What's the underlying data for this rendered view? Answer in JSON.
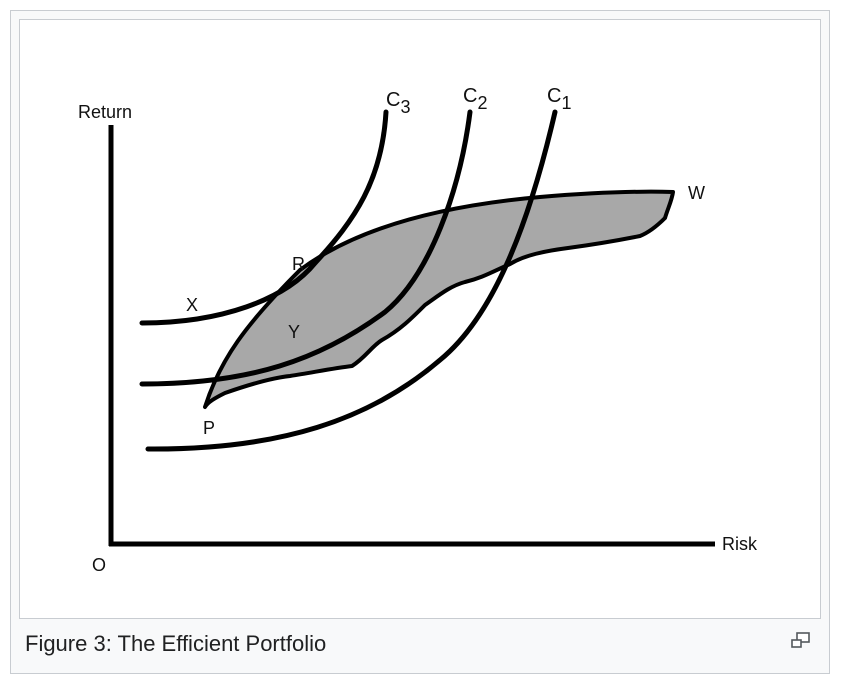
{
  "figure": {
    "caption": "Figure 3: The Efficient Portfolio",
    "magnify_icon": "magnify-clip-icon"
  },
  "diagram": {
    "axis_labels": {
      "y": "Return",
      "x": "Risk",
      "origin": "O"
    },
    "curves": [
      {
        "label": "C",
        "subscript": "3"
      },
      {
        "label": "C",
        "subscript": "2"
      },
      {
        "label": "C",
        "subscript": "1"
      }
    ],
    "points": {
      "R": "R",
      "X": "X",
      "Y": "Y",
      "P": "P",
      "W": "W"
    },
    "colors": {
      "region_fill": "#a8a8a8",
      "line": "#000000"
    }
  }
}
